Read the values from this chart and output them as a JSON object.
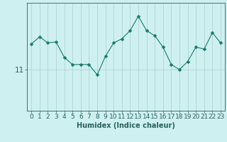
{
  "x": [
    0,
    1,
    2,
    3,
    4,
    5,
    6,
    7,
    8,
    9,
    10,
    11,
    12,
    13,
    14,
    15,
    16,
    17,
    18,
    19,
    20,
    21,
    22,
    23
  ],
  "y": [
    13.5,
    14.2,
    13.6,
    13.7,
    12.2,
    11.5,
    11.5,
    11.5,
    10.5,
    12.3,
    13.6,
    14.0,
    14.8,
    16.2,
    14.8,
    14.3,
    13.2,
    11.5,
    11.0,
    11.8,
    13.2,
    13.0,
    14.6,
    13.6
  ],
  "line_color": "#1a7a6e",
  "marker_color": "#1a7a6e",
  "bg_color": "#cef0f0",
  "grid_color": "#aacece",
  "xlabel": "Humidex (Indice chaleur)",
  "ytick_label": "11",
  "ytick_value": 11,
  "xlim": [
    -0.5,
    23.5
  ],
  "ylim": [
    7.0,
    17.5
  ],
  "axis_color": "#2a6060",
  "xlabel_fontsize": 7,
  "tick_fontsize": 6.5
}
